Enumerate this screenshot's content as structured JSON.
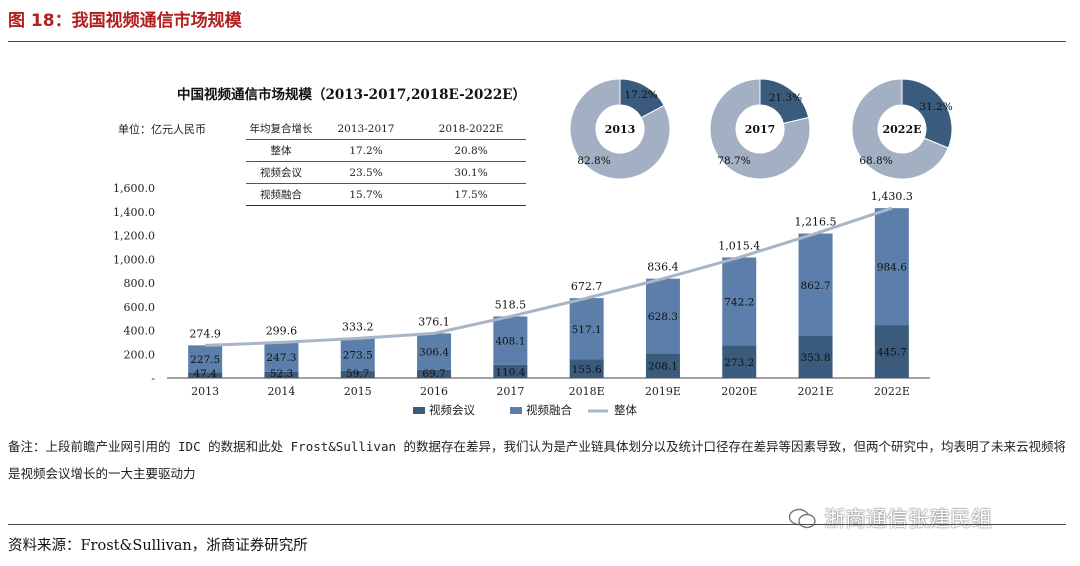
{
  "figure_title": "图 18：我国视频通信市场规模",
  "chart_title": "中国视频通信市场规模（2013-2017,2018E-2022E）",
  "unit_label": "单位：亿元人民币",
  "cagr_table": {
    "headers": [
      "年均复合增长",
      "2013-2017",
      "2018-2022E"
    ],
    "rows": [
      [
        "整体",
        "17.2%",
        "20.8%"
      ],
      [
        "视频会议",
        "23.5%",
        "30.1%"
      ],
      [
        "视频融合",
        "15.7%",
        "17.5%"
      ]
    ]
  },
  "chart_data": [
    {
      "type": "bar",
      "stacked": true,
      "title": "中国视频通信市场规模（2013-2017,2018E-2022E）",
      "categories": [
        "2013",
        "2014",
        "2015",
        "2016",
        "2017",
        "2018E",
        "2019E",
        "2020E",
        "2021E",
        "2022E"
      ],
      "series": [
        {
          "name": "视频会议",
          "values": [
            47.4,
            52.3,
            59.7,
            69.7,
            110.4,
            155.6,
            208.1,
            273.2,
            353.8,
            445.7
          ],
          "labels": [
            "47.4",
            "52.3",
            "59.7",
            "69.7",
            "110.4",
            "155.6",
            "208.1",
            "273.2",
            "353.8",
            "445.7"
          ]
        },
        {
          "name": "视频融合",
          "values": [
            227.5,
            247.3,
            273.5,
            306.4,
            408.1,
            517.1,
            628.3,
            742.2,
            862.7,
            984.6
          ],
          "labels": [
            "227.5",
            "247.3",
            "273.5",
            "306.4",
            "408.1",
            "517.1",
            "628.3",
            "742.2",
            "862.7",
            "984.6"
          ]
        }
      ],
      "line": {
        "name": "整体",
        "values": [
          274.9,
          299.6,
          333.2,
          376.1,
          518.5,
          672.7,
          836.4,
          1015.4,
          1216.5,
          1430.3
        ],
        "labels": [
          "274.9",
          "299.6",
          "333.2",
          "376.1",
          "518.5",
          "672.7",
          "836.4",
          "1,015.4",
          "1,216.5",
          "1,430.3"
        ]
      },
      "yticks": [
        "-",
        "200.0",
        "400.0",
        "600.0",
        "800.0",
        "1,000.0",
        "1,200.0",
        "1,400.0",
        "1,600.0"
      ],
      "ylim": [
        0,
        1600
      ],
      "legend": [
        "视频会议",
        "视频融合",
        "整体"
      ],
      "legend_position": "bottom-center",
      "colors": {
        "conference": "#3b5b7d",
        "fusion": "#5b7faa",
        "total": "#a8b5c6",
        "axis": "#444444"
      }
    },
    {
      "type": "pie",
      "donut": true,
      "center_label": "2013",
      "slices": [
        {
          "name": "视频会议",
          "value": 17.2,
          "label": "17.2%"
        },
        {
          "name": "视频融合",
          "value": 82.8,
          "label": "82.8%"
        }
      ],
      "colors": [
        "#3b5b7d",
        "#a3b0c3"
      ]
    },
    {
      "type": "pie",
      "donut": true,
      "center_label": "2017",
      "slices": [
        {
          "name": "视频会议",
          "value": 21.3,
          "label": "21.3%"
        },
        {
          "name": "视频融合",
          "value": 78.7,
          "label": "78.7%"
        }
      ],
      "colors": [
        "#3b5b7d",
        "#a3b0c3"
      ]
    },
    {
      "type": "pie",
      "donut": true,
      "center_label": "2022E",
      "slices": [
        {
          "name": "视频会议",
          "value": 31.2,
          "label": "31.2%"
        },
        {
          "name": "视频融合",
          "value": 68.8,
          "label": "68.8%"
        }
      ],
      "colors": [
        "#3b5b7d",
        "#a3b0c3"
      ]
    }
  ],
  "note": "备注：上段前瞻产业网引用的 IDC 的数据和此处 Frost&Sullivan 的数据存在差异，我们认为是产业链具体划分以及统计口径存在差异等因素导致，但两个研究中，均表明了未来云视频将是视频会议增长的一大主要驱动力",
  "source": "资料来源：Frost&Sullivan，浙商证券研究所",
  "watermark": "浙商通信张建民组"
}
